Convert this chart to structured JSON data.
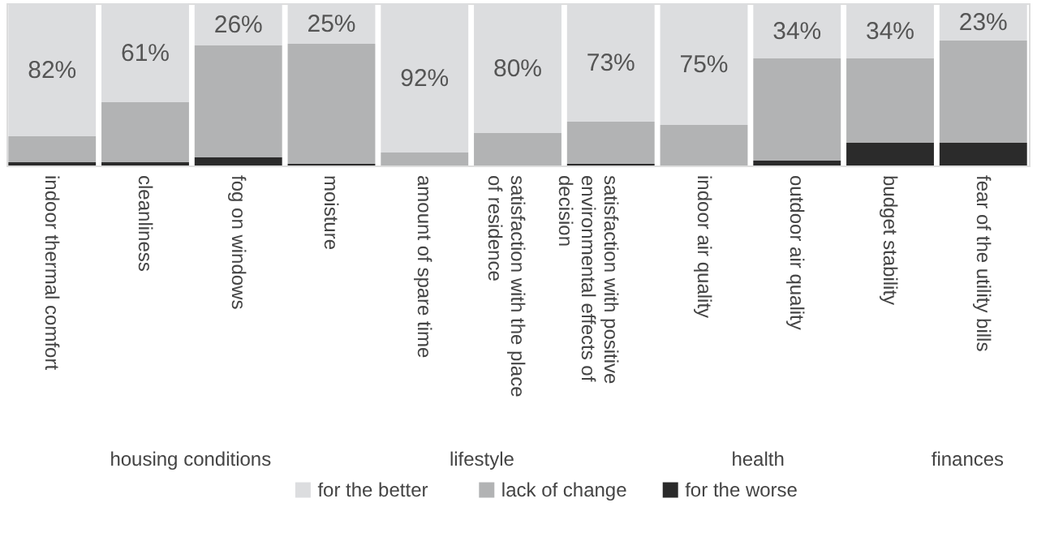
{
  "chart_data": {
    "type": "bar",
    "stacked": true,
    "categories": [
      "indoor thermal comfort",
      "cleanliness",
      "fog on windows",
      "moisture",
      "amount of spare time",
      "satisfaction with the place of residence",
      "satisfaction with positive environmental effects of decision",
      "indoor air quality",
      "outdoor air quality",
      "budget stability",
      "fear of the utility bills"
    ],
    "series": [
      {
        "name": "for the worse",
        "color": "#2b2b2b",
        "values": [
          2,
          2,
          5,
          1,
          0,
          0,
          1,
          0,
          3,
          14,
          14
        ]
      },
      {
        "name": "lack of change",
        "color": "#b2b3b4",
        "values": [
          16,
          37,
          69,
          74,
          8,
          20,
          26,
          25,
          63,
          52,
          63
        ]
      },
      {
        "name": "for the better",
        "color": "#dcdddf",
        "values": [
          82,
          61,
          26,
          25,
          92,
          80,
          73,
          75,
          34,
          34,
          23
        ],
        "value_labels": [
          "82%",
          "61%",
          "26%",
          "25%",
          "92%",
          "80%",
          "73%",
          "75%",
          "34%",
          "34%",
          "23%"
        ]
      }
    ],
    "ylim": [
      0,
      100
    ],
    "tick_labels": "x",
    "legend": "bottom",
    "annotations": [
      "housing conditions",
      "lifestyle",
      "health",
      "finances"
    ]
  }
}
